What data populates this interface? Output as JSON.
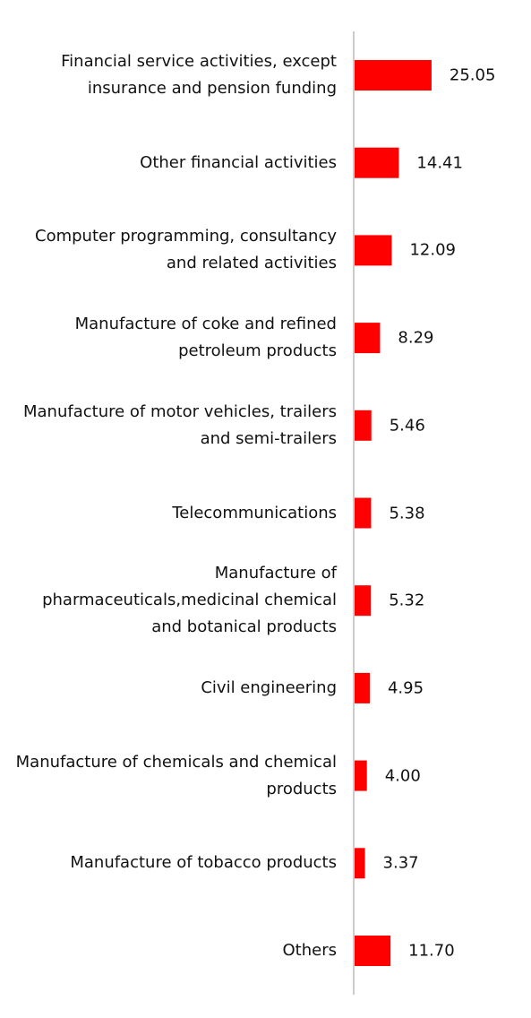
{
  "chart_data": {
    "type": "bar",
    "orientation": "horizontal",
    "categories": [
      "Financial service activities, except insurance and pension funding",
      "Other financial activities",
      "Computer programming, consultancy and related activities",
      "Manufacture of coke and refined petroleum products",
      "Manufacture of motor vehicles, trailers and semi-trailers",
      "Telecommunications",
      "Manufacture of pharmaceuticals,medicinal chemical and botanical products",
      "Civil engineering",
      "Manufacture of chemicals and chemical products",
      "Manufacture of tobacco products",
      "Others"
    ],
    "values": [
      25.05,
      14.41,
      12.09,
      8.29,
      5.46,
      5.38,
      5.32,
      4.95,
      4.0,
      3.37,
      11.7
    ],
    "value_labels": [
      "25.05",
      "14.41",
      "12.09",
      "8.29",
      "5.46",
      "5.38",
      "5.32",
      "4.95",
      "4.00",
      "3.37",
      "11.70"
    ],
    "color": "#ff0000"
  }
}
